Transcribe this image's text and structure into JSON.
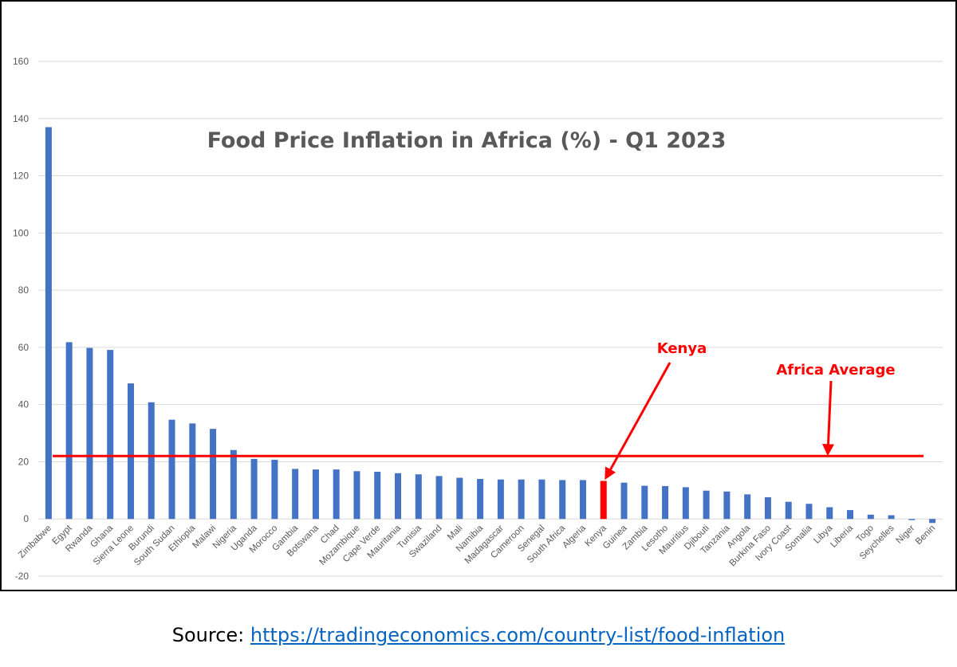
{
  "chart_data": {
    "type": "bar",
    "title": "Food Price Inflation in Africa (%) - Q1 2023",
    "xlabel": "",
    "ylabel": "",
    "ylim": [
      -20,
      160
    ],
    "yticks": [
      -20,
      0,
      20,
      40,
      60,
      80,
      100,
      120,
      140,
      160
    ],
    "grid": true,
    "legend": "none",
    "bar_color": "#4472c4",
    "highlight_color": "#ff0000",
    "highlight_category": "Kenya",
    "categories": [
      "Zimbabwe",
      "Egypt",
      "Rwanda",
      "Ghana",
      "Sierra Leone",
      "Burundi",
      "South Sudan",
      "Ethiopia",
      "Malawi",
      "Nigeria",
      "Uganda",
      "Morocco",
      "Gambia",
      "Botswana",
      "Chad",
      "Mozambique",
      "Cape Verde",
      "Mauritania",
      "Tunisia",
      "Swaziland",
      "Mali",
      "Namibia",
      "Madagascar",
      "Cameroon",
      "Senegal",
      "South Africa",
      "Algeria",
      "Kenya",
      "Guinea",
      "Zambia",
      "Lesotho",
      "Mauritius",
      "Djibouti",
      "Tanzania",
      "Angola",
      "Burkina Faso",
      "Ivory Coast",
      "Somalia",
      "Libya",
      "Liberia",
      "Togo",
      "Seychelles",
      "Niger",
      "Benin"
    ],
    "values": [
      137.0,
      61.8,
      59.8,
      59.1,
      47.4,
      40.8,
      34.7,
      33.4,
      31.5,
      24.1,
      21.0,
      20.7,
      17.5,
      17.3,
      17.3,
      16.7,
      16.5,
      16.0,
      15.6,
      15.0,
      14.4,
      14.0,
      13.8,
      13.8,
      13.8,
      13.6,
      13.6,
      13.3,
      12.7,
      11.6,
      11.5,
      11.1,
      9.9,
      9.6,
      8.6,
      7.6,
      6.0,
      5.3,
      4.1,
      3.1,
      1.5,
      1.3,
      -0.4,
      -1.4
    ],
    "average_line": {
      "value": 22.0,
      "label": "Africa Average",
      "color": "#ff0000"
    },
    "annotations": [
      {
        "text": "Kenya",
        "target": "Kenya"
      },
      {
        "text": "Africa Average",
        "target": "average_line"
      }
    ]
  },
  "source": {
    "prefix": "Source: ",
    "link_text": "https://tradingeconomics.com/country-list/food-inflation",
    "link_color": "#0563c1"
  }
}
